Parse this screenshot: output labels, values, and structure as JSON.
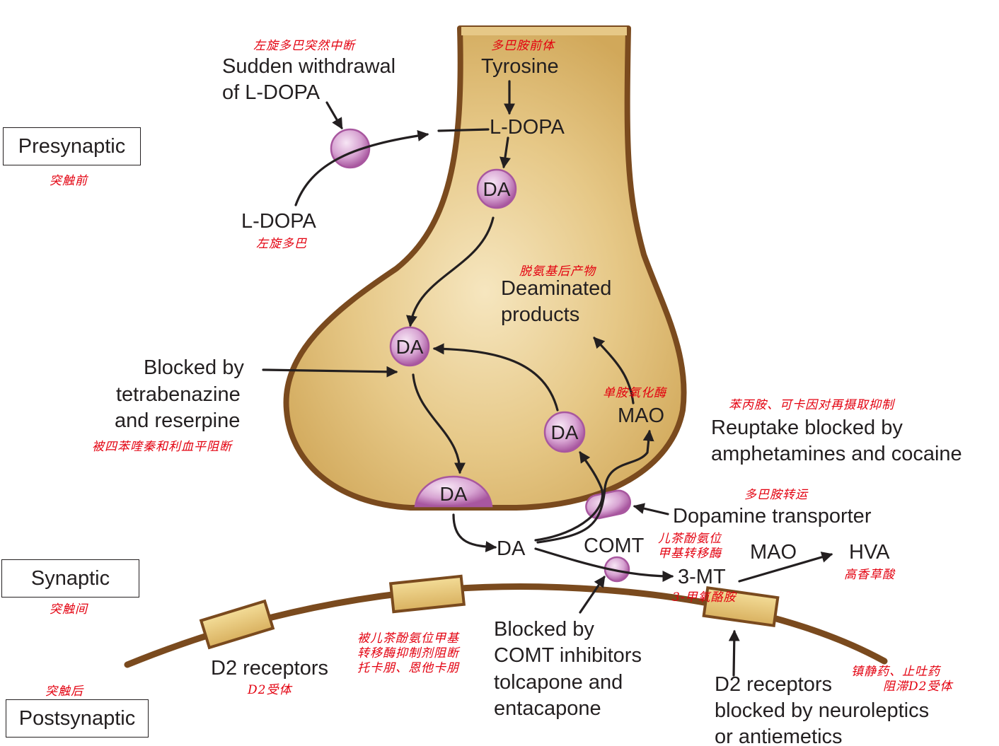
{
  "zones": {
    "presynaptic": "Presynaptic",
    "presynaptic_cn": "突触前",
    "synaptic": "Synaptic",
    "synaptic_cn": "突触间",
    "postsynaptic": "Postsynaptic",
    "postsynaptic_cn": "突触后"
  },
  "synthesis": {
    "tyrosine": "Tyrosine",
    "tyrosine_cn": "多巴胺前体",
    "ldopa_inside": "L-DOPA",
    "ldopa_outside": "L-DOPA",
    "ldopa_outside_cn": "左旋多巴"
  },
  "withdrawal": {
    "line1": "Sudden withdrawal",
    "line2": "of L-DOPA",
    "cn": "左旋多巴突然中断"
  },
  "vesicles": {
    "da_label": "DA",
    "free_da": "DA"
  },
  "deaminated": {
    "line1": "Deaminated",
    "line2": "products",
    "cn": "脱氨基后产物"
  },
  "mao_inside": {
    "label": "MAO",
    "cn": "单胺氧化酶"
  },
  "tetrabenazine": {
    "line1": "Blocked by",
    "line2": "tetrabenazine",
    "line3": "and reserpine",
    "cn": "被四苯喹秦和利血平阻断"
  },
  "reuptake": {
    "line1": "Reuptake blocked by",
    "line2": "amphetamines and cocaine",
    "cn": "苯丙胺、可卡因对再摄取抑制"
  },
  "transporter": {
    "label": "Dopamine transporter",
    "cn": "多巴胺转运"
  },
  "metabolism": {
    "comt": "COMT",
    "comt_cn_line1": "儿茶酚氨位",
    "comt_cn_line2": "甲基转移酶",
    "three_mt": "3-MT",
    "three_mt_cn": "3-甲氧酪胺",
    "mao": "MAO",
    "hva": "HVA",
    "hva_cn": "高香草酸"
  },
  "comt_inhibitors": {
    "line1": "Blocked by",
    "line2": "COMT inhibitors",
    "line3": "tolcapone and",
    "line4": "entacapone",
    "cn_line1": "被儿茶酚氨位甲基",
    "cn_line2": "转移酶抑制剂阻断",
    "cn_line3": "托卡朋、恩他卡朋"
  },
  "d2": {
    "label": "D2 receptors",
    "cn": "D2受体"
  },
  "d2_blocked": {
    "line1": "D2 receptors",
    "line2": "blocked by neuroleptics",
    "line3": "or antiemetics",
    "cn_line1": "镇静药、止吐药",
    "cn_line2": "阻滞D2受体"
  },
  "colors": {
    "terminal_fill": "#e2c27a",
    "membrane": "#7a4a1e",
    "vesicle": "#c98cc4",
    "receptor": "#e8c46a",
    "arrow": "#231f20",
    "annotation_red": "#e3000f"
  },
  "icons": {
    "vesicle": "pink-sphere",
    "receptor": "tan-rectangle",
    "arrow": "black-arrowhead"
  }
}
